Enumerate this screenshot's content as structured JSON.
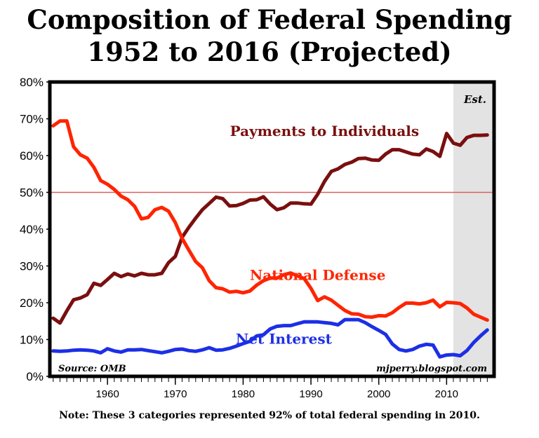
{
  "title_line1": "Composition of Federal Spending",
  "title_line2": "1952 to 2016 (Projected)",
  "note": "Note: These 3 categories represented 92% of total federal spending in 2010.",
  "chart_data": {
    "type": "line",
    "title": "Composition of Federal Spending 1952 to 2016 (Projected)",
    "xlabel": "",
    "ylabel": "",
    "xlim": [
      1951.5,
      2017
    ],
    "ylim": [
      0,
      80
    ],
    "x_ticks": [
      1960,
      1970,
      1980,
      1990,
      2000,
      2010
    ],
    "x_tick_labels": [
      "1960",
      "1970",
      "1980",
      "1990",
      "2000",
      "2010"
    ],
    "y_ticks": [
      0,
      10,
      20,
      30,
      40,
      50,
      60,
      70,
      80
    ],
    "y_tick_labels": [
      "0%",
      "10%",
      "20%",
      "30%",
      "40%",
      "50%",
      "60%",
      "70%",
      "80%"
    ],
    "reference_line": {
      "y": 50
    },
    "shaded_region": {
      "x_start": 2011,
      "x_end": 2017,
      "label": "Est."
    },
    "source_label": "Source: OMB",
    "credit_label": "mjperry.blogspot.com",
    "colors": {
      "payments": "#7a0f0f",
      "defense": "#ff2400",
      "interest": "#1c2fe6",
      "reference": "#d96060",
      "shade": "#e3e3e3"
    },
    "series": [
      {
        "name": "Payments to Individuals",
        "key": "payments",
        "label_x": 1992,
        "label_y": 65.3,
        "x": [
          1952,
          1953,
          1954,
          1955,
          1956,
          1957,
          1958,
          1959,
          1960,
          1961,
          1962,
          1963,
          1964,
          1965,
          1966,
          1967,
          1968,
          1969,
          1970,
          1971,
          1972,
          1973,
          1974,
          1975,
          1976,
          1977,
          1978,
          1979,
          1980,
          1981,
          1982,
          1983,
          1984,
          1985,
          1986,
          1987,
          1988,
          1989,
          1990,
          1991,
          1992,
          1993,
          1994,
          1995,
          1996,
          1997,
          1998,
          1999,
          2000,
          2001,
          2002,
          2003,
          2004,
          2005,
          2006,
          2007,
          2008,
          2009,
          2010,
          2011,
          2012,
          2013,
          2014,
          2015,
          2016
        ],
        "values": [
          15.8,
          14.5,
          17.8,
          20.8,
          21.3,
          22.2,
          25.3,
          24.7,
          26.3,
          28.0,
          27.1,
          27.8,
          27.3,
          28.0,
          27.6,
          27.6,
          28.0,
          30.9,
          32.6,
          37.8,
          40.5,
          43.0,
          45.3,
          47.0,
          48.7,
          48.3,
          46.3,
          46.4,
          47.0,
          47.9,
          48.0,
          48.8,
          46.8,
          45.3,
          45.8,
          47.1,
          47.1,
          46.9,
          46.8,
          49.5,
          53.0,
          55.7,
          56.4,
          57.6,
          58.2,
          59.2,
          59.3,
          58.8,
          58.7,
          60.4,
          61.6,
          61.6,
          61.0,
          60.4,
          60.2,
          61.8,
          61.1,
          59.8,
          66.0,
          63.4,
          62.8,
          64.9,
          65.5,
          65.5,
          65.6
        ]
      },
      {
        "name": "National Defense",
        "key": "defense",
        "label_x": 1991,
        "label_y": 26.2,
        "x": [
          1952,
          1953,
          1954,
          1955,
          1956,
          1957,
          1958,
          1959,
          1960,
          1961,
          1962,
          1963,
          1964,
          1965,
          1966,
          1967,
          1968,
          1969,
          1970,
          1971,
          1972,
          1973,
          1974,
          1975,
          1976,
          1977,
          1978,
          1979,
          1980,
          1981,
          1982,
          1983,
          1984,
          1985,
          1986,
          1987,
          1988,
          1989,
          1990,
          1991,
          1992,
          1993,
          1994,
          1995,
          1996,
          1997,
          1998,
          1999,
          2000,
          2001,
          2002,
          2003,
          2004,
          2005,
          2006,
          2007,
          2008,
          2009,
          2010,
          2011,
          2012,
          2013,
          2014,
          2015,
          2016
        ],
        "values": [
          68.1,
          69.4,
          69.4,
          62.4,
          60.2,
          59.3,
          56.8,
          53.2,
          52.2,
          50.8,
          49.0,
          48.0,
          46.2,
          42.8,
          43.2,
          45.3,
          45.9,
          44.9,
          41.8,
          37.5,
          34.3,
          31.2,
          29.5,
          26.0,
          24.1,
          23.8,
          22.9,
          23.1,
          22.7,
          23.2,
          24.8,
          26.0,
          26.7,
          26.7,
          27.6,
          28.1,
          27.3,
          26.6,
          23.9,
          20.6,
          21.6,
          20.7,
          19.3,
          17.9,
          17.0,
          16.9,
          16.2,
          16.1,
          16.5,
          16.4,
          17.3,
          18.7,
          19.9,
          19.9,
          19.7,
          20.0,
          20.7,
          18.9,
          20.1,
          20.0,
          19.8,
          18.6,
          16.9,
          16.1,
          15.3
        ]
      },
      {
        "name": "Net Interest",
        "key": "interest",
        "label_x": 1986,
        "label_y": 8.9,
        "x": [
          1952,
          1953,
          1954,
          1955,
          1956,
          1957,
          1958,
          1959,
          1960,
          1961,
          1962,
          1963,
          1964,
          1965,
          1966,
          1967,
          1968,
          1969,
          1970,
          1971,
          1972,
          1973,
          1974,
          1975,
          1976,
          1977,
          1978,
          1979,
          1980,
          1981,
          1982,
          1983,
          1984,
          1985,
          1986,
          1987,
          1988,
          1989,
          1990,
          1991,
          1992,
          1993,
          1994,
          1995,
          1996,
          1997,
          1998,
          1999,
          2000,
          2001,
          2002,
          2003,
          2004,
          2005,
          2006,
          2007,
          2008,
          2009,
          2010,
          2011,
          2012,
          2013,
          2014,
          2015,
          2016
        ],
        "values": [
          6.9,
          6.8,
          6.9,
          7.1,
          7.2,
          7.1,
          6.9,
          6.4,
          7.5,
          6.9,
          6.6,
          7.2,
          7.2,
          7.3,
          7.0,
          6.7,
          6.4,
          6.8,
          7.3,
          7.4,
          7.0,
          6.8,
          7.2,
          7.8,
          7.1,
          7.2,
          7.6,
          8.2,
          8.9,
          9.5,
          11.0,
          11.3,
          12.9,
          13.6,
          13.8,
          13.8,
          14.3,
          14.8,
          14.8,
          14.8,
          14.6,
          14.4,
          14.0,
          15.4,
          15.4,
          15.4,
          14.6,
          13.5,
          12.5,
          11.4,
          8.8,
          7.3,
          6.9,
          7.3,
          8.2,
          8.7,
          8.5,
          5.3,
          5.8,
          5.9,
          5.6,
          7.0,
          9.2,
          11.0,
          12.6
        ]
      }
    ]
  }
}
